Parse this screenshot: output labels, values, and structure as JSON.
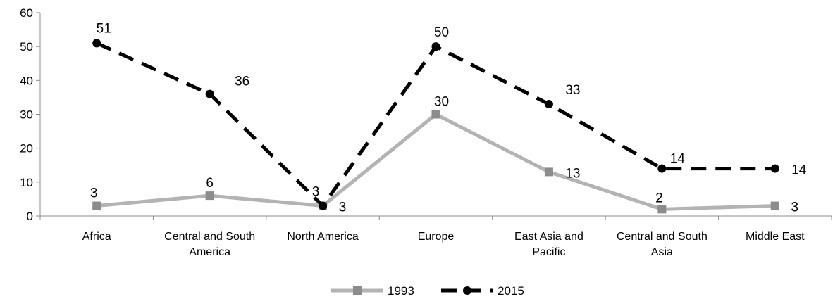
{
  "chart_data": {
    "type": "line",
    "title": "",
    "xlabel": "",
    "ylabel": "",
    "categories": [
      [
        "Africa"
      ],
      [
        "Central and South",
        "America"
      ],
      [
        "North America"
      ],
      [
        "Europe"
      ],
      [
        "East Asia and",
        "Pacific"
      ],
      [
        "Central and South",
        "Asia"
      ],
      [
        "Middle East"
      ]
    ],
    "ylim": [
      0,
      60
    ],
    "yticks": [
      0,
      10,
      20,
      30,
      40,
      50,
      60
    ],
    "grid": false,
    "legend": "bottom",
    "series": [
      {
        "name": "1993",
        "values": [
          3,
          6,
          3,
          30,
          13,
          2,
          3
        ],
        "labels": [
          "3",
          "6",
          "3",
          "30",
          "13",
          "2",
          "3"
        ],
        "color": "#b3b3b3",
        "marker_color": "#8c8c8c",
        "line_style": "solid",
        "marker": "square"
      },
      {
        "name": "2015",
        "values": [
          51,
          36,
          3,
          50,
          33,
          14,
          14
        ],
        "labels": [
          "51",
          "36",
          "3",
          "50",
          "33",
          "14",
          "14"
        ],
        "color": "#000000",
        "marker_color": "#000000",
        "line_style": "dashed",
        "marker": "circle"
      }
    ]
  }
}
